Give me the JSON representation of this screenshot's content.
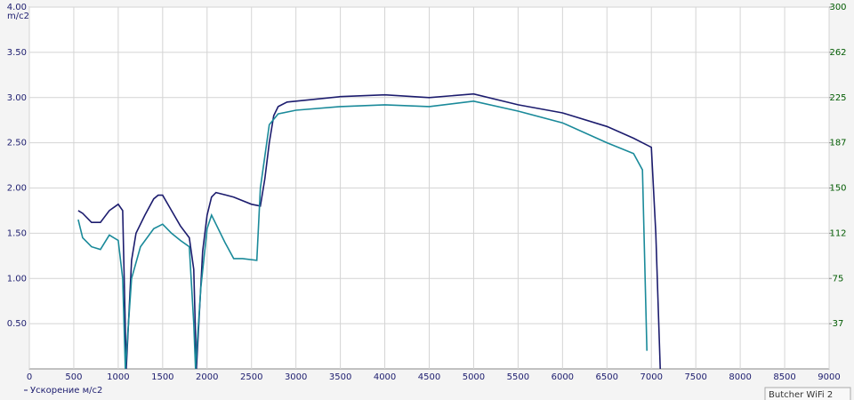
{
  "chart_data": {
    "type": "line",
    "y_label": "m/c2",
    "legend_label": "Ускорение м/с2",
    "annotation": "Butcher WiFi  2",
    "xlim": [
      0,
      9000
    ],
    "xticks": [
      0,
      500,
      1000,
      1500,
      2000,
      2500,
      3000,
      3500,
      4000,
      4500,
      5000,
      5500,
      6000,
      6500,
      7000,
      7500,
      8000,
      8500,
      9000
    ],
    "ylim": [
      0,
      4
    ],
    "yticks": [
      {
        "value": 0.5,
        "label": "0.50"
      },
      {
        "value": 1,
        "label": "1.00"
      },
      {
        "value": 1.5,
        "label": "1.50"
      },
      {
        "value": 2,
        "label": "2.00"
      },
      {
        "value": 2.5,
        "label": "2.50"
      },
      {
        "value": 3,
        "label": "3.00"
      },
      {
        "value": 3.5,
        "label": "3.50"
      },
      {
        "value": 4,
        "label": "4.00"
      }
    ],
    "y2lim": [
      0,
      300
    ],
    "y2ticks": [
      {
        "value": 37.5,
        "label": "37"
      },
      75,
      {
        "value": 112.5,
        "label": "112"
      },
      150,
      {
        "value": 187.5,
        "label": "187"
      },
      225,
      {
        "value": 262.5,
        "label": "262"
      },
      300
    ],
    "grid": true,
    "series": [
      {
        "name": "Ускорение м/с2",
        "color": "#1c1c6e",
        "x": [
          550,
          600,
          700,
          800,
          900,
          1000,
          1050,
          1090,
          1150,
          1200,
          1300,
          1400,
          1450,
          1500,
          1600,
          1700,
          1800,
          1850,
          1880,
          1950,
          2000,
          2050,
          2100,
          2300,
          2500,
          2600,
          2650,
          2700,
          2750,
          2800,
          2900,
          3000,
          3500,
          4000,
          4500,
          5000,
          5500,
          6000,
          6500,
          6800,
          7000,
          7050,
          7100
        ],
        "values": [
          1.75,
          1.72,
          1.62,
          1.62,
          1.75,
          1.82,
          1.75,
          0,
          1.2,
          1.5,
          1.7,
          1.88,
          1.92,
          1.92,
          1.75,
          1.58,
          1.45,
          1.1,
          0,
          1.3,
          1.7,
          1.9,
          1.95,
          1.9,
          1.82,
          1.8,
          2.1,
          2.5,
          2.8,
          2.9,
          2.95,
          2.96,
          3.01,
          3.03,
          3.0,
          3.04,
          2.92,
          2.83,
          2.68,
          2.55,
          2.45,
          1.5,
          0
        ]
      },
      {
        "color": "#1a8a9a",
        "x": [
          550,
          600,
          700,
          800,
          900,
          1000,
          1050,
          1080,
          1150,
          1250,
          1400,
          1500,
          1600,
          1700,
          1800,
          1850,
          1870,
          1930,
          2000,
          2050,
          2100,
          2200,
          2300,
          2400,
          2560,
          2600,
          2700,
          2800,
          3000,
          3500,
          4000,
          4500,
          5000,
          5500,
          6000,
          6500,
          6800,
          6900,
          6950
        ],
        "values": [
          1.65,
          1.45,
          1.35,
          1.32,
          1.48,
          1.42,
          1.0,
          0,
          1.0,
          1.35,
          1.55,
          1.6,
          1.5,
          1.42,
          1.35,
          0.5,
          0,
          0.9,
          1.55,
          1.7,
          1.6,
          1.4,
          1.22,
          1.22,
          1.2,
          2.0,
          2.7,
          2.82,
          2.86,
          2.9,
          2.92,
          2.9,
          2.96,
          2.85,
          2.72,
          2.5,
          2.38,
          2.2,
          0.2
        ]
      }
    ]
  }
}
